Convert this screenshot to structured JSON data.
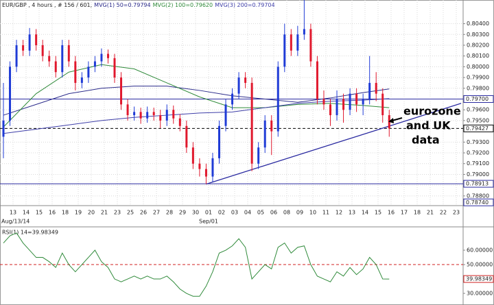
{
  "chart_data": {
    "type": "candlestick",
    "header": "EUR/GBP , 4 hours , # 156 / 601,",
    "ylim": [
      0.7871,
      0.8062
    ],
    "yticks": [
      {
        "value": 0.804,
        "label": "0.80400"
      },
      {
        "value": 0.803,
        "label": "0.80300"
      },
      {
        "value": 0.802,
        "label": "0.80200"
      },
      {
        "value": 0.801,
        "label": "0.80100"
      },
      {
        "value": 0.8,
        "label": "0.80000"
      },
      {
        "value": 0.799,
        "label": "0.79900"
      },
      {
        "value": 0.798,
        "label": "0.79800"
      },
      {
        "value": 0.796,
        "label": "0.79600"
      },
      {
        "value": 0.795,
        "label": "0.79500"
      },
      {
        "value": 0.793,
        "label": "0.79300"
      },
      {
        "value": 0.792,
        "label": "0.79200"
      },
      {
        "value": 0.791,
        "label": "0.79100"
      },
      {
        "value": 0.79,
        "label": "0.79000"
      },
      {
        "value": 0.789,
        "label": "0.78900"
      },
      {
        "value": 0.788,
        "label": "0.78800"
      }
    ],
    "up_color": "#1f3bd6",
    "down_color": "#e0182d",
    "candles": [
      [
        0.7935,
        0.7985,
        0.7915,
        0.795
      ],
      [
        0.795,
        0.8005,
        0.7945,
        0.8
      ],
      [
        0.8,
        0.8025,
        0.7995,
        0.802
      ],
      [
        0.802,
        0.8025,
        0.801,
        0.8015
      ],
      [
        0.8015,
        0.8036,
        0.801,
        0.803
      ],
      [
        0.803,
        0.8035,
        0.8015,
        0.802
      ],
      [
        0.802,
        0.8025,
        0.8005,
        0.801
      ],
      [
        0.801,
        0.8015,
        0.8,
        0.8005
      ],
      [
        0.8005,
        0.801,
        0.799,
        0.7995
      ],
      [
        0.7995,
        0.8025,
        0.799,
        0.802
      ],
      [
        0.802,
        0.8025,
        0.8,
        0.8005
      ],
      [
        0.8005,
        0.801,
        0.7978,
        0.7985
      ],
      [
        0.7985,
        0.7995,
        0.798,
        0.799
      ],
      [
        0.799,
        0.8005,
        0.7985,
        0.8
      ],
      [
        0.8,
        0.801,
        0.7995,
        0.8005
      ],
      [
        0.8005,
        0.8017,
        0.8,
        0.8012
      ],
      [
        0.8012,
        0.8016,
        0.8003,
        0.8008
      ],
      [
        0.8008,
        0.8012,
        0.7985,
        0.799
      ],
      [
        0.799,
        0.7995,
        0.796,
        0.7965
      ],
      [
        0.7965,
        0.797,
        0.795,
        0.7955
      ],
      [
        0.7955,
        0.7963,
        0.795,
        0.7958
      ],
      [
        0.7958,
        0.7962,
        0.7947,
        0.7952
      ],
      [
        0.7952,
        0.7963,
        0.7948,
        0.7958
      ],
      [
        0.7958,
        0.7962,
        0.795,
        0.7955
      ],
      [
        0.7955,
        0.796,
        0.7943,
        0.795
      ],
      [
        0.795,
        0.7965,
        0.7945,
        0.796
      ],
      [
        0.796,
        0.7964,
        0.7947,
        0.7952
      ],
      [
        0.7952,
        0.7956,
        0.794,
        0.7945
      ],
      [
        0.7945,
        0.795,
        0.792,
        0.7925
      ],
      [
        0.7925,
        0.793,
        0.7905,
        0.791
      ],
      [
        0.791,
        0.7915,
        0.7898,
        0.7905
      ],
      [
        0.7905,
        0.791,
        0.7891,
        0.7898
      ],
      [
        0.7898,
        0.792,
        0.7893,
        0.7915
      ],
      [
        0.7915,
        0.795,
        0.791,
        0.7945
      ],
      [
        0.7945,
        0.797,
        0.794,
        0.7965
      ],
      [
        0.7965,
        0.798,
        0.796,
        0.7975
      ],
      [
        0.7975,
        0.7995,
        0.797,
        0.799
      ],
      [
        0.799,
        0.7995,
        0.798,
        0.7985
      ],
      [
        0.7985,
        0.799,
        0.7903,
        0.791
      ],
      [
        0.791,
        0.793,
        0.7905,
        0.7925
      ],
      [
        0.7925,
        0.7955,
        0.792,
        0.795
      ],
      [
        0.795,
        0.7955,
        0.7918,
        0.794
      ],
      [
        0.794,
        0.8005,
        0.7935,
        0.8
      ],
      [
        0.8,
        0.804,
        0.7995,
        0.803
      ],
      [
        0.803,
        0.8035,
        0.801,
        0.8015
      ],
      [
        0.8015,
        0.8038,
        0.801,
        0.803
      ],
      [
        0.803,
        0.8062,
        0.8025,
        0.8035
      ],
      [
        0.8035,
        0.804,
        0.8,
        0.8005
      ],
      [
        0.8005,
        0.801,
        0.7965,
        0.797
      ],
      [
        0.797,
        0.7978,
        0.796,
        0.7965
      ],
      [
        0.7965,
        0.797,
        0.7945,
        0.7955
      ],
      [
        0.7955,
        0.7978,
        0.795,
        0.797
      ],
      [
        0.797,
        0.7975,
        0.7948,
        0.796
      ],
      [
        0.796,
        0.798,
        0.7955,
        0.7975
      ],
      [
        0.7975,
        0.798,
        0.7958,
        0.7965
      ],
      [
        0.7965,
        0.7975,
        0.7955,
        0.797
      ],
      [
        0.797,
        0.801,
        0.7965,
        0.7985
      ],
      [
        0.7985,
        0.7995,
        0.7968,
        0.7975
      ],
      [
        0.7975,
        0.798,
        0.7948,
        0.7955
      ],
      [
        0.7955,
        0.796,
        0.7935,
        0.79427
      ]
    ],
    "x": [
      0,
      5,
      10,
      15,
      20,
      25,
      30,
      35,
      40,
      45,
      50,
      55,
      59
    ],
    "series": [
      {
        "name": "MVG(1) 50=0.79794",
        "color": "#2a2a8a",
        "values": [
          0.7955,
          0.7965,
          0.7975,
          0.798,
          0.7982,
          0.7982,
          0.7978,
          0.7973,
          0.797,
          0.7967,
          0.7971,
          0.7976,
          0.79794
        ]
      },
      {
        "name": "MVG(2) 100=0.79620",
        "color": "#2f8a3a",
        "values": [
          0.7944,
          0.7975,
          0.7995,
          0.8002,
          0.7998,
          0.7985,
          0.7972,
          0.7962,
          0.7962,
          0.7965,
          0.7966,
          0.7964,
          0.7962
        ]
      },
      {
        "name": "MVG(3) 200=0.79704",
        "color": "#3d3da8",
        "values": [
          0.7938,
          0.7942,
          0.7946,
          0.795,
          0.7953,
          0.7955,
          0.7957,
          0.7958,
          0.7962,
          0.7966,
          0.7968,
          0.7969,
          0.79704
        ]
      }
    ],
    "levels": [
      {
        "value": 0.797,
        "label": "0.79700",
        "style": "solid",
        "color": "#2a2aa0"
      },
      {
        "value": 0.79427,
        "label": "0.79427",
        "style": "dashed",
        "color": "#000000"
      },
      {
        "value": 0.78913,
        "label": "0.78913",
        "style": "solid",
        "color": "#2a2aa0"
      },
      {
        "value": 0.7874,
        "label": "0.78740",
        "style": "label",
        "color": "#2a2aa0"
      }
    ],
    "trendline": {
      "from": [
        31,
        0.7891
      ],
      "to": [
        70,
        0.7966
      ],
      "color": "#2a2aa0"
    },
    "xlabels": [
      "13",
      "14",
      "15",
      "16",
      "18",
      "19",
      "20",
      "21",
      "23",
      "25",
      "26",
      "27",
      "28",
      "29",
      "30",
      "01",
      "02",
      "03",
      "04",
      "05",
      "06",
      "08",
      "09",
      "10",
      "11",
      "12",
      "13",
      "14",
      "15",
      "16",
      "17",
      "18",
      "21",
      "22",
      "23"
    ],
    "date_labels": [
      "Aug/13/14",
      "Sep/01"
    ],
    "annotation": [
      "eurozone",
      "and UK",
      "data"
    ],
    "rsi": {
      "label": "RSI(1) 14=39.98349",
      "color": "#2f8a3a",
      "ylim": [
        24.3,
        74.3
      ],
      "yticks": [
        {
          "value": 60,
          "label": "60.00000"
        },
        {
          "value": 50,
          "label": "50.00000"
        },
        {
          "value": 30,
          "label": "30.00000"
        }
      ],
      "midline": 50,
      "current": {
        "value": 39.98349,
        "label": "39.98349"
      },
      "values": [
        65,
        70,
        72,
        65,
        60,
        55,
        55,
        52,
        48,
        58,
        50,
        45,
        50,
        55,
        60,
        52,
        48,
        40,
        38,
        40,
        42,
        40,
        42,
        40,
        40,
        42,
        38,
        33,
        30,
        28,
        28,
        35,
        45,
        58,
        60,
        63,
        68,
        62,
        40,
        45,
        50,
        47,
        62,
        65,
        58,
        62,
        63,
        50,
        42,
        40,
        38,
        45,
        42,
        48,
        43,
        47,
        55,
        50,
        40,
        39.98349
      ]
    }
  }
}
